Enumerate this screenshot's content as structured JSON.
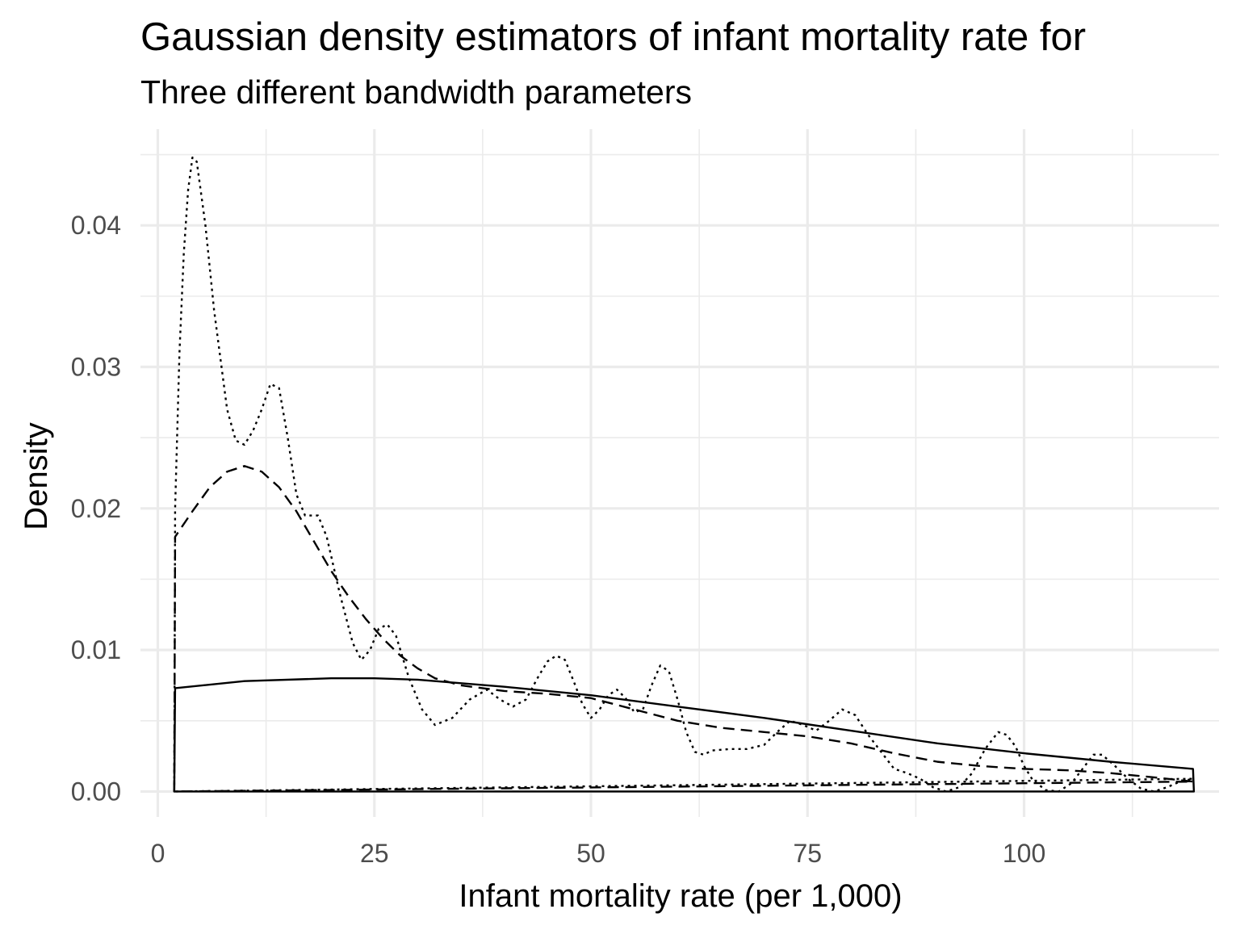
{
  "chart_data": {
    "type": "line",
    "title": "Gaussian density estimators of infant mortality rate for",
    "subtitle": "Three different bandwidth parameters",
    "xlabel": "Infant mortality rate (per 1,000)",
    "ylabel": "Density",
    "xlim": [
      -2,
      122.5
    ],
    "ylim": [
      -0.0018,
      0.0468
    ],
    "x_ticks": [
      0,
      25,
      50,
      75,
      100
    ],
    "x_tick_labels": [
      "0",
      "25",
      "50",
      "75",
      "100"
    ],
    "y_ticks": [
      0.0,
      0.01,
      0.02,
      0.03,
      0.04
    ],
    "y_tick_labels": [
      "0.00",
      "0.01",
      "0.02",
      "0.03",
      "0.04"
    ],
    "grid": true,
    "legend": "none",
    "color": "#000000",
    "series": [
      {
        "linetype": "dotted",
        "x": [
          1.9,
          2.0,
          2.5,
          3.0,
          3.5,
          4.0,
          4.5,
          5.5,
          6.5,
          8.0,
          9.0,
          10.0,
          11.0,
          12.0,
          13.0,
          14.0,
          15.0,
          16.0,
          17.0,
          18.5,
          19.5,
          21.0,
          22.5,
          23.5,
          24.5,
          25.5,
          26.5,
          27.5,
          29.0,
          30.5,
          32.0,
          34.0,
          36.0,
          38.0,
          39.5,
          41.0,
          42.5,
          44.0,
          45.0,
          46.0,
          47.0,
          48.0,
          49.0,
          50.0,
          51.0,
          52.0,
          53.0,
          54.0,
          55.0,
          56.0,
          57.0,
          58.0,
          59.0,
          60.0,
          61.0,
          62.0,
          63.0,
          64.0,
          66.0,
          68.0,
          70.0,
          71.5,
          73.0,
          74.5,
          76.0,
          77.5,
          79.0,
          80.5,
          82.0,
          83.5,
          85.0,
          86.5,
          88.0,
          89.5,
          91.0,
          92.5,
          94.0,
          95.5,
          97.0,
          98.0,
          99.0,
          100.0,
          101.0,
          102.5,
          104.0,
          105.5,
          107.0,
          108.0,
          109.0,
          110.5,
          112.0,
          113.5,
          115.0,
          116.5,
          118.0,
          119.5
        ],
        "y": [
          0.0,
          0.02,
          0.031,
          0.038,
          0.0425,
          0.0448,
          0.0445,
          0.04,
          0.034,
          0.027,
          0.0248,
          0.0245,
          0.0255,
          0.027,
          0.0288,
          0.0285,
          0.025,
          0.021,
          0.0195,
          0.0195,
          0.018,
          0.014,
          0.0105,
          0.0093,
          0.01,
          0.0115,
          0.0118,
          0.011,
          0.008,
          0.0058,
          0.0047,
          0.0052,
          0.0065,
          0.0072,
          0.0065,
          0.006,
          0.0065,
          0.0082,
          0.0092,
          0.0096,
          0.0093,
          0.0078,
          0.0062,
          0.0052,
          0.0058,
          0.0068,
          0.0072,
          0.0066,
          0.0056,
          0.0058,
          0.0075,
          0.0089,
          0.0085,
          0.0065,
          0.0042,
          0.0028,
          0.0026,
          0.0029,
          0.003,
          0.003,
          0.0033,
          0.0042,
          0.005,
          0.0047,
          0.0043,
          0.005,
          0.0058,
          0.0054,
          0.004,
          0.0028,
          0.0016,
          0.0013,
          0.0009,
          0.0003,
          0.0,
          0.0003,
          0.0013,
          0.003,
          0.0042,
          0.004,
          0.0032,
          0.0018,
          0.0008,
          0.0001,
          0.0,
          0.0006,
          0.0018,
          0.0026,
          0.0026,
          0.0018,
          0.0009,
          0.0002,
          0.0,
          0.0003,
          0.0007,
          0.0009
        ]
      },
      {
        "linetype": "dashed",
        "x": [
          1.9,
          2.0,
          4.0,
          6.0,
          8.0,
          10.0,
          12.0,
          14.0,
          16.0,
          18.0,
          20.0,
          22.0,
          24.0,
          26.0,
          28.0,
          30.0,
          32.0,
          35.0,
          40.0,
          45.0,
          50.0,
          55.0,
          60.0,
          65.0,
          70.0,
          75.0,
          80.0,
          85.0,
          90.0,
          95.0,
          100.0,
          105.0,
          110.0,
          115.0,
          119.5
        ],
        "y": [
          0.0,
          0.018,
          0.0198,
          0.0215,
          0.0226,
          0.023,
          0.0226,
          0.0215,
          0.0198,
          0.0177,
          0.0156,
          0.0138,
          0.0122,
          0.0108,
          0.0096,
          0.0087,
          0.008,
          0.0075,
          0.0071,
          0.0069,
          0.0066,
          0.0058,
          0.005,
          0.0045,
          0.0042,
          0.0039,
          0.0034,
          0.0027,
          0.0021,
          0.0018,
          0.0016,
          0.0015,
          0.0013,
          0.001,
          0.0007
        ]
      },
      {
        "linetype": "solid",
        "x": [
          1.9,
          2.0,
          10.0,
          20.0,
          25.0,
          30.0,
          40.0,
          50.0,
          60.0,
          70.0,
          80.0,
          90.0,
          100.0,
          110.0,
          119.5,
          119.6
        ],
        "y": [
          0.0,
          0.0073,
          0.0078,
          0.008,
          0.008,
          0.0079,
          0.0074,
          0.0068,
          0.006,
          0.0052,
          0.0043,
          0.0034,
          0.0027,
          0.0021,
          0.0016,
          0.0
        ]
      }
    ]
  }
}
